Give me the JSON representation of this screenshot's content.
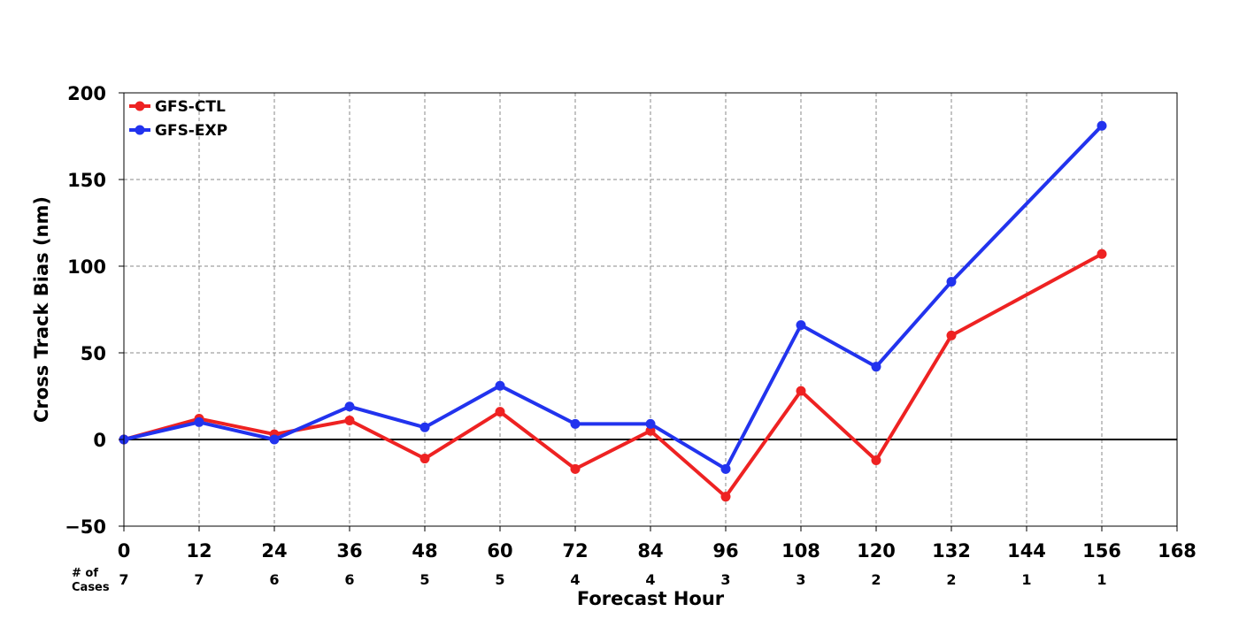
{
  "chart_data": {
    "type": "line",
    "xlabel": "Forecast Hour",
    "ylabel": "Cross Track Bias (nm)",
    "xlim": [
      0,
      168
    ],
    "ylim": [
      -50,
      200
    ],
    "x_ticks": [
      "0",
      "12",
      "24",
      "36",
      "48",
      "60",
      "72",
      "84",
      "96",
      "108",
      "120",
      "132",
      "144",
      "156",
      "168"
    ],
    "y_ticks": [
      "−50",
      "0",
      "50",
      "100",
      "150",
      "200"
    ],
    "grid": true,
    "legend_position": "top-left",
    "cases_label": [
      "# of",
      "Cases"
    ],
    "cases": [
      "7",
      "7",
      "6",
      "6",
      "5",
      "5",
      "4",
      "4",
      "3",
      "3",
      "2",
      "2",
      "1",
      "1"
    ],
    "x": [
      0,
      12,
      24,
      36,
      48,
      60,
      72,
      84,
      96,
      108,
      120,
      132,
      156
    ],
    "series": [
      {
        "name": "GFS-CTL",
        "color": "#ee2222",
        "values": [
          0,
          12,
          3,
          11,
          -11,
          16,
          -17,
          5,
          -33,
          28,
          -12,
          60,
          107
        ]
      },
      {
        "name": "GFS-EXP",
        "color": "#2233ee",
        "values": [
          0,
          10,
          0,
          19,
          7,
          31,
          9,
          9,
          -17,
          66,
          42,
          91,
          181
        ]
      }
    ]
  }
}
